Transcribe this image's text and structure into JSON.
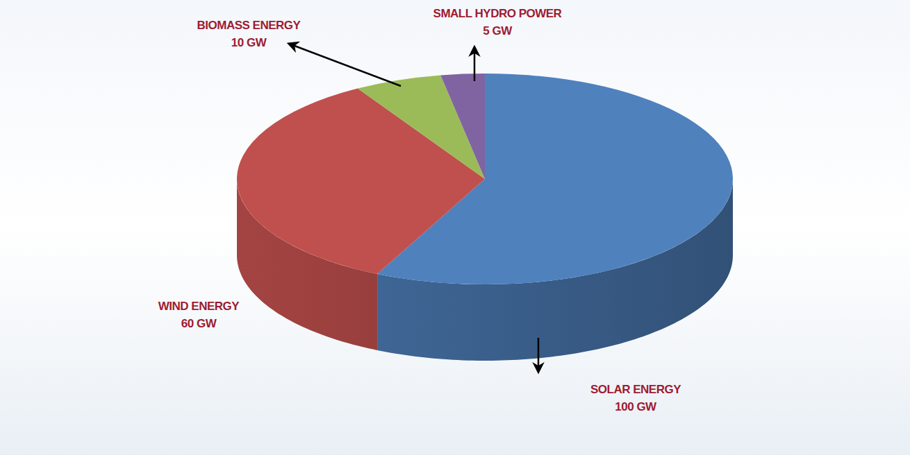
{
  "chart_data": {
    "type": "pie",
    "categories": [
      "SOLAR ENERGY",
      "WIND ENERGY",
      "BIOMASS ENERGY",
      "SMALL HYDRO POWER"
    ],
    "values": [
      100,
      60,
      10,
      5
    ],
    "value_labels": [
      "100 GW",
      "60 GW",
      "10 GW",
      "5 GW"
    ],
    "colors": [
      "#4f81bd",
      "#c0504d",
      "#9bbb59",
      "#8064a2"
    ],
    "data_labels": true
  }
}
